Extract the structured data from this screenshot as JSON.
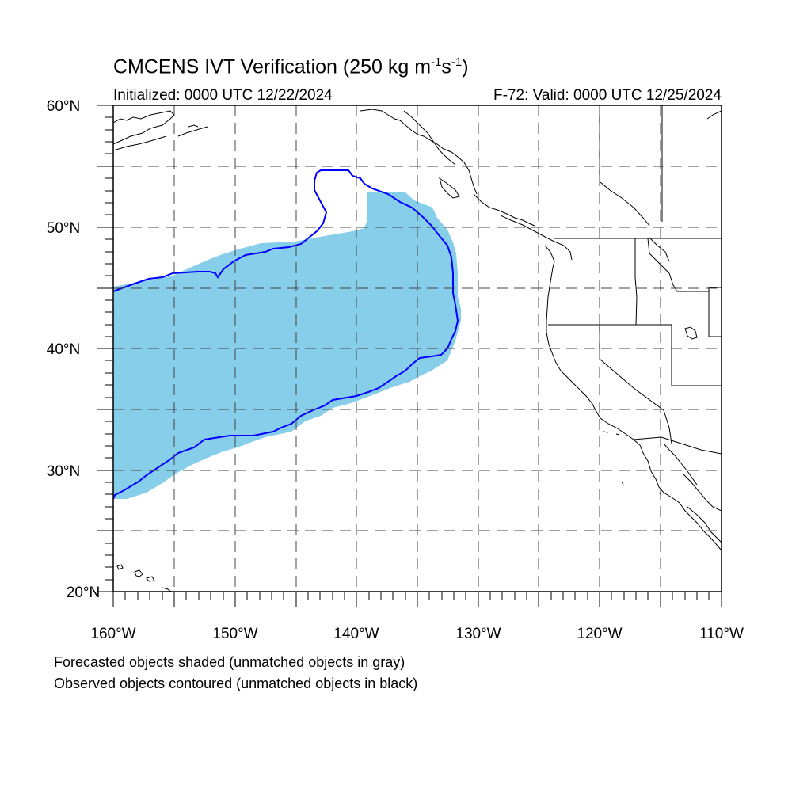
{
  "title": {
    "main": "CMCENS IVT Verification (250 kg m",
    "sup1": "-1",
    "mid": "s",
    "sup2": "-1",
    "end": ")"
  },
  "initialized": "Initialized: 0000 UTC 12/22/2024",
  "valid": "F-72: Valid: 0000 UTC 12/25/2024",
  "lat_labels": [
    "20°N",
    "30°N",
    "40°N",
    "50°N",
    "60°N"
  ],
  "lon_labels": [
    "160°W",
    "150°W",
    "140°W",
    "130°W",
    "120°W",
    "110°W"
  ],
  "legend": {
    "line1": "Forecasted objects shaded (unmatched objects in gray)",
    "line2": "Observed objects contoured (unmatched objects in black)"
  },
  "colors": {
    "forecast_fill": "#87ceeb",
    "observed_contour": "#0000ff",
    "coastline": "#000000",
    "grid": "#000000"
  }
}
